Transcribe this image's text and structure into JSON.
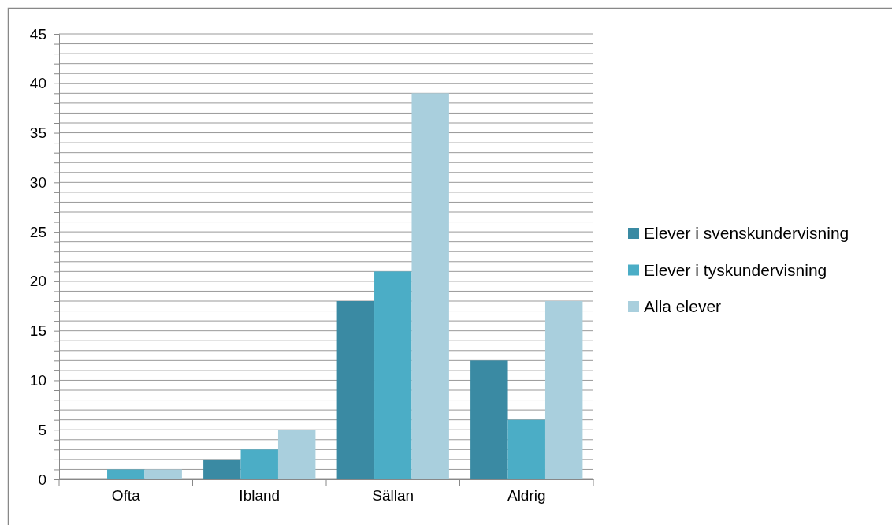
{
  "chart_data": {
    "type": "bar",
    "categories": [
      "Ofta",
      "Ibland",
      "Sällan",
      "Aldrig"
    ],
    "series": [
      {
        "name": "Elever i svenskundervisning",
        "color": "#3a8aa3",
        "values": [
          0,
          2,
          18,
          12
        ]
      },
      {
        "name": "Elever i tyskundervisning",
        "color": "#4badc6",
        "values": [
          1,
          3,
          21,
          6
        ]
      },
      {
        "name": "Alla elever",
        "color": "#a9cfdd",
        "values": [
          1,
          5,
          39,
          18
        ]
      }
    ],
    "ylim": [
      0,
      45
    ],
    "yticks": [
      0,
      {
        "value": 1,
        "label": null
      },
      {
        "value": 2,
        "label": null
      },
      {
        "value": 3,
        "label": null
      },
      {
        "value": 4,
        "label": null
      },
      5,
      {
        "value": 6,
        "label": null
      },
      {
        "value": 7,
        "label": null
      },
      {
        "value": 8,
        "label": null
      },
      {
        "value": 9,
        "label": null
      },
      10,
      {
        "value": 11,
        "label": null
      },
      {
        "value": 12,
        "label": null
      },
      {
        "value": 13,
        "label": null
      },
      {
        "value": 14,
        "label": null
      },
      15,
      {
        "value": 16,
        "label": null
      },
      {
        "value": 17,
        "label": null
      },
      {
        "value": 18,
        "label": null
      },
      {
        "value": 19,
        "label": null
      },
      20,
      {
        "value": 21,
        "label": null
      },
      {
        "value": 22,
        "label": null
      },
      {
        "value": 23,
        "label": null
      },
      {
        "value": 24,
        "label": null
      },
      25,
      {
        "value": 26,
        "label": null
      },
      {
        "value": 27,
        "label": null
      },
      {
        "value": 28,
        "label": null
      },
      {
        "value": 29,
        "label": null
      },
      30,
      {
        "value": 31,
        "label": null
      },
      {
        "value": 32,
        "label": null
      },
      {
        "value": 33,
        "label": null
      },
      {
        "value": 34,
        "label": null
      },
      35,
      {
        "value": 36,
        "label": null
      },
      {
        "value": 37,
        "label": null
      },
      {
        "value": 38,
        "label": null
      },
      {
        "value": 39,
        "label": null
      },
      40,
      {
        "value": 41,
        "label": null
      },
      {
        "value": 42,
        "label": null
      },
      {
        "value": 43,
        "label": null
      },
      {
        "value": 44,
        "label": null
      },
      45
    ],
    "grid": "y",
    "legend": "right"
  }
}
